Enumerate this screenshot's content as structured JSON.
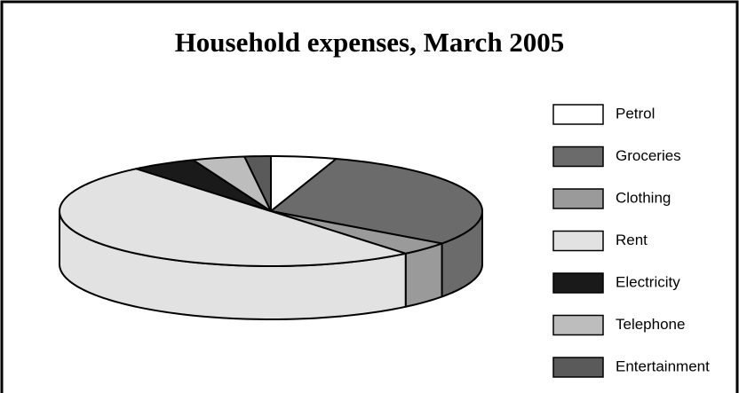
{
  "chart_data": {
    "type": "pie",
    "title": "Household expenses, March 2005",
    "categories": [
      "Petrol",
      "Groceries",
      "Clothing",
      "Rent",
      "Electricity",
      "Telephone",
      "Entertainment"
    ],
    "values": [
      5,
      30,
      4,
      50,
      5,
      4,
      2
    ],
    "colors": [
      "#ffffff",
      "#6b6b6b",
      "#9a9a9a",
      "#e2e2e2",
      "#1a1a1a",
      "#bdbdbd",
      "#5a5a5a"
    ],
    "legend": "right"
  }
}
